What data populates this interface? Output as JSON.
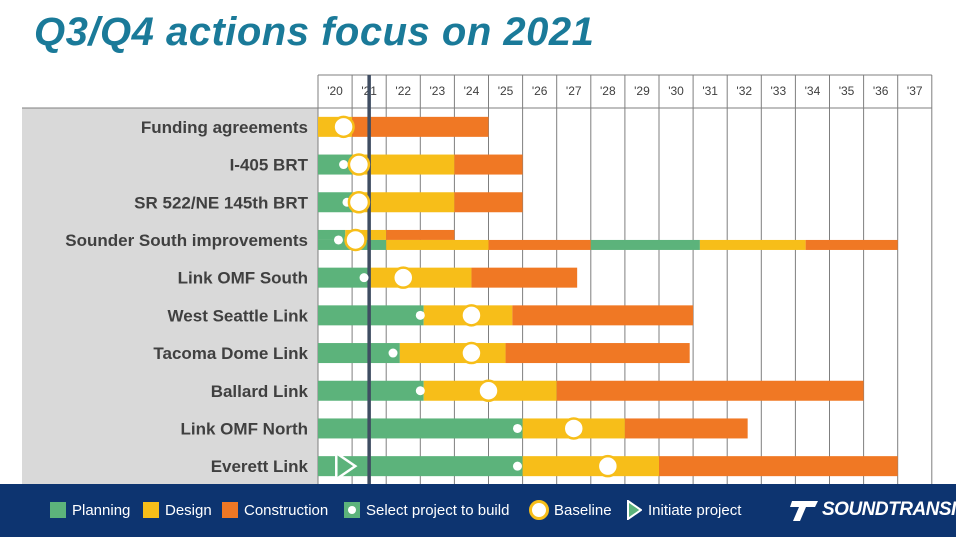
{
  "title": "Q3/Q4 actions focus on 2021",
  "colors": {
    "planning": "#5cb37b",
    "design": "#f7be19",
    "construction": "#f07824",
    "label_panel": "#d9d9d9",
    "title": "#1a7a99",
    "footer": "#0d3470",
    "today_line": "#3f4d62"
  },
  "legend": {
    "planning": "Planning",
    "design": "Design",
    "construction": "Construction",
    "select": "Select project to build",
    "baseline": "Baseline",
    "initiate": "Initiate project"
  },
  "brand": "SOUNDTRANSIT",
  "chart_data": {
    "type": "gantt",
    "years": [
      "'20",
      "'21",
      "'22",
      "'23",
      "'24",
      "'25",
      "'26",
      "'27",
      "'28",
      "'29",
      "'30",
      "'31",
      "'32",
      "'33",
      "'34",
      "'35",
      "'36",
      "'37"
    ],
    "today_marker": 2021.5,
    "projects": [
      {
        "name": "Funding agreements",
        "segments": [
          {
            "phase": "design",
            "start": 2020.0,
            "end": 2021.0
          },
          {
            "phase": "construction",
            "start": 2021.0,
            "end": 2025.0
          }
        ],
        "baseline": 2020.75
      },
      {
        "name": "I-405 BRT",
        "segments": [
          {
            "phase": "planning",
            "start": 2020.0,
            "end": 2021.0
          },
          {
            "phase": "design",
            "start": 2021.0,
            "end": 2024.0
          },
          {
            "phase": "construction",
            "start": 2024.0,
            "end": 2026.0
          }
        ],
        "select": 2020.75,
        "baseline": 2021.2
      },
      {
        "name": "SR 522/NE 145th BRT",
        "segments": [
          {
            "phase": "planning",
            "start": 2020.0,
            "end": 2021.0
          },
          {
            "phase": "design",
            "start": 2021.0,
            "end": 2024.0
          },
          {
            "phase": "construction",
            "start": 2024.0,
            "end": 2026.0
          }
        ],
        "select": 2020.85,
        "baseline": 2021.2
      },
      {
        "name": "Sounder South improvements",
        "split": true,
        "segments_top": [
          {
            "phase": "planning",
            "start": 2020.0,
            "end": 2020.8
          },
          {
            "phase": "design",
            "start": 2020.8,
            "end": 2022.0
          },
          {
            "phase": "construction",
            "start": 2022.0,
            "end": 2024.0
          }
        ],
        "segments_bottom": [
          {
            "phase": "planning",
            "start": 2020.0,
            "end": 2022.0
          },
          {
            "phase": "design",
            "start": 2022.0,
            "end": 2025.0
          },
          {
            "phase": "construction",
            "start": 2025.0,
            "end": 2028.0
          },
          {
            "phase": "planning",
            "start": 2028.0,
            "end": 2031.2
          },
          {
            "phase": "design",
            "start": 2031.2,
            "end": 2034.3
          },
          {
            "phase": "construction",
            "start": 2034.3,
            "end": 2037.0
          }
        ],
        "select": 2020.6,
        "baseline": 2021.1
      },
      {
        "name": "Link OMF South",
        "segments": [
          {
            "phase": "planning",
            "start": 2020.0,
            "end": 2021.5
          },
          {
            "phase": "design",
            "start": 2021.5,
            "end": 2024.5
          },
          {
            "phase": "construction",
            "start": 2024.5,
            "end": 2027.6
          }
        ],
        "select": 2021.35,
        "baseline": 2022.5
      },
      {
        "name": "West Seattle Link",
        "segments": [
          {
            "phase": "planning",
            "start": 2020.0,
            "end": 2023.1
          },
          {
            "phase": "design",
            "start": 2023.1,
            "end": 2025.7
          },
          {
            "phase": "construction",
            "start": 2025.7,
            "end": 2031.0
          }
        ],
        "select": 2023.0,
        "baseline": 2024.5
      },
      {
        "name": "Tacoma Dome Link",
        "segments": [
          {
            "phase": "planning",
            "start": 2020.0,
            "end": 2022.4
          },
          {
            "phase": "design",
            "start": 2022.4,
            "end": 2025.5
          },
          {
            "phase": "construction",
            "start": 2025.5,
            "end": 2030.9
          }
        ],
        "select": 2022.2,
        "baseline": 2024.5
      },
      {
        "name": "Ballard Link",
        "segments": [
          {
            "phase": "planning",
            "start": 2020.0,
            "end": 2023.1
          },
          {
            "phase": "design",
            "start": 2023.1,
            "end": 2027.0
          },
          {
            "phase": "construction",
            "start": 2027.0,
            "end": 2036.0
          }
        ],
        "select": 2023.0,
        "baseline": 2025.0
      },
      {
        "name": "Link OMF North",
        "segments": [
          {
            "phase": "planning",
            "start": 2020.0,
            "end": 2026.0
          },
          {
            "phase": "design",
            "start": 2026.0,
            "end": 2029.0
          },
          {
            "phase": "construction",
            "start": 2029.0,
            "end": 2032.6
          }
        ],
        "select": 2025.85,
        "baseline": 2027.5
      },
      {
        "name": "Everett Link",
        "segments": [
          {
            "phase": "planning",
            "start": 2020.0,
            "end": 2026.0
          },
          {
            "phase": "design",
            "start": 2026.0,
            "end": 2030.0
          },
          {
            "phase": "construction",
            "start": 2030.0,
            "end": 2037.0
          }
        ],
        "select": 2025.85,
        "baseline": 2028.5,
        "initiate": 2020.8
      }
    ]
  }
}
